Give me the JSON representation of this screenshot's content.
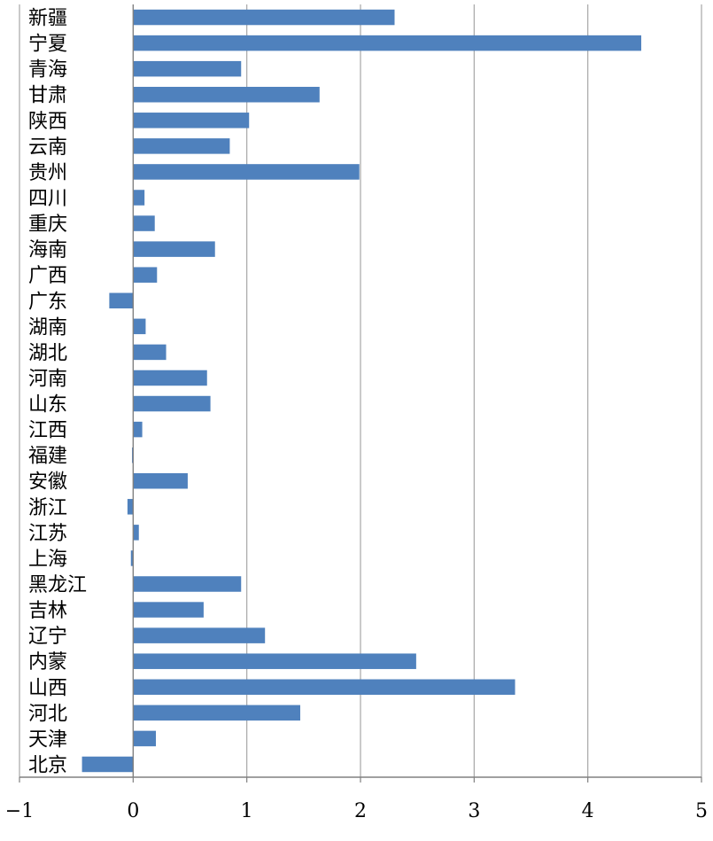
{
  "chart_data": {
    "type": "bar",
    "orientation": "horizontal",
    "categories": [
      "新疆",
      "宁夏",
      "青海",
      "甘肃",
      "陕西",
      "云南",
      "贵州",
      "四川",
      "重庆",
      "海南",
      "广西",
      "广东",
      "湖南",
      "湖北",
      "河南",
      "山东",
      "江西",
      "福建",
      "安徽",
      "浙江",
      "江苏",
      "上海",
      "黑龙江",
      "吉林",
      "辽宁",
      "内蒙",
      "山西",
      "河北",
      "天津",
      "北京"
    ],
    "values": [
      2.3,
      4.47,
      0.95,
      1.64,
      1.02,
      0.85,
      1.99,
      0.1,
      0.19,
      0.72,
      0.21,
      -0.21,
      0.11,
      0.29,
      0.65,
      0.68,
      0.08,
      -0.01,
      0.48,
      -0.05,
      0.05,
      -0.02,
      0.95,
      0.62,
      1.16,
      2.49,
      3.36,
      1.47,
      0.2,
      -0.45
    ],
    "xlim": [
      -1,
      5
    ],
    "xticks": [
      "−1",
      "0",
      "1",
      "2",
      "3",
      "4",
      "5"
    ],
    "grid": "vertical",
    "bar_color": "#4f81bd",
    "title": "",
    "xlabel": "",
    "ylabel": ""
  }
}
